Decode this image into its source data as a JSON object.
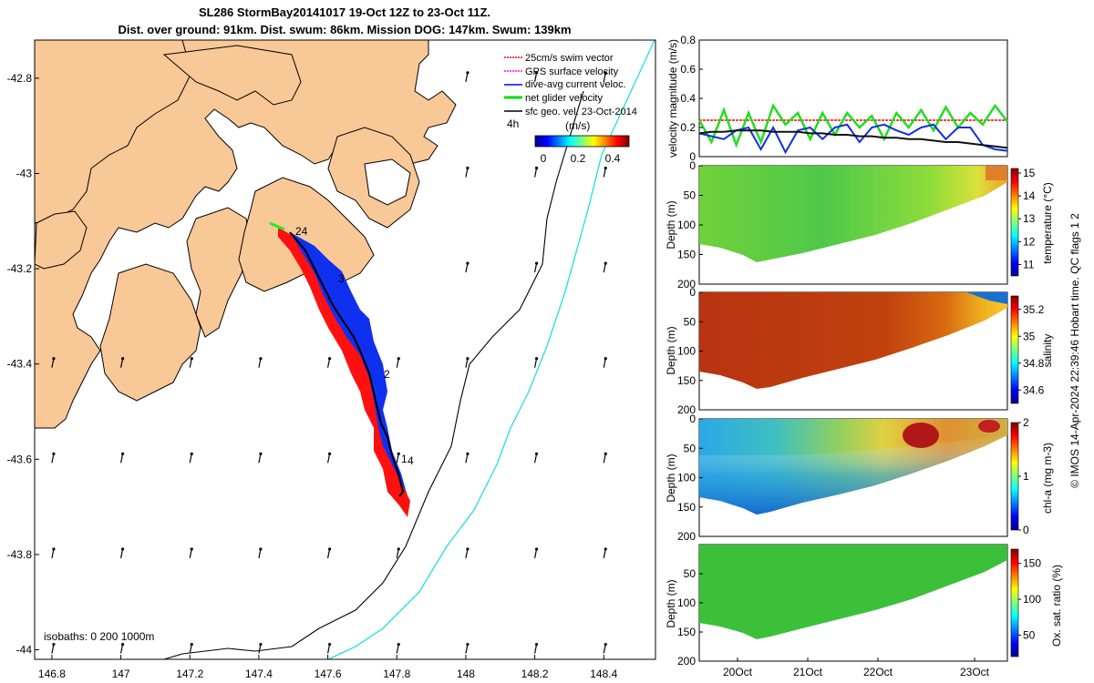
{
  "chart_data": [
    {
      "type": "map",
      "title_line1": "SL286 StormBay20141017 19-Oct 12Z to 23-Oct 11Z.",
      "title_line2": "Dist. over ground: 91km. Dist. swum: 86km. Mission DOG: 147km. Swum: 139km",
      "x_ticks": [
        "146.8",
        "147",
        "147.2",
        "147.4",
        "147.6",
        "147.8",
        "148",
        "148.2",
        "148.4"
      ],
      "y_ticks": [
        "-42.8",
        "-43",
        "-43.2",
        "-43.4",
        "-43.6",
        "-43.8",
        "-44"
      ],
      "xlim": [
        146.75,
        148.55
      ],
      "ylim": [
        -44.02,
        -42.72
      ],
      "legend": [
        {
          "label": "25cm/s swim vector",
          "color": "#ff0000"
        },
        {
          "label": "GPS surface velocity",
          "color": "#ff00ff"
        },
        {
          "label": "dive-avg current veloc.",
          "color": "#0000ff"
        },
        {
          "label": "net glider velocity",
          "color": "#00dd00"
        },
        {
          "label": "sfc geo. vel. 23-Oct-2014",
          "color": "#000000"
        }
      ],
      "time_label": "4h",
      "colorbar_label": "(m/s)",
      "colorbar_ticks": [
        "0",
        "0.2",
        "0.4"
      ],
      "track_labels": [
        "24",
        "3",
        "2",
        "1",
        "4"
      ],
      "isobaths_label": "isobaths: 0   200  1000m"
    },
    {
      "type": "line",
      "ylabel": "velocity magnitude (m/s)",
      "ylim": [
        0,
        0.8
      ],
      "y_ticks": [
        "0",
        "0.2",
        "0.4",
        "0.6",
        "0.8"
      ],
      "series": [
        {
          "name": "swim",
          "color": "#ff0000",
          "values": [
            0.25,
            0.25,
            0.25,
            0.25,
            0.25,
            0.25,
            0.25,
            0.25,
            0.25,
            0.25,
            0.25,
            0.25,
            0.25,
            0.25,
            0.25,
            0.25,
            0.25,
            0.25,
            0.25,
            0.25,
            0.25,
            0.25,
            0.25,
            0.25,
            0.25,
            0.25
          ]
        },
        {
          "name": "net glider",
          "color": "#22dd22",
          "values": [
            0.25,
            0.1,
            0.32,
            0.08,
            0.3,
            0.1,
            0.35,
            0.22,
            0.3,
            0.12,
            0.3,
            0.15,
            0.3,
            0.2,
            0.28,
            0.12,
            0.3,
            0.2,
            0.32,
            0.18,
            0.34,
            0.2,
            0.3,
            0.22,
            0.35,
            0.24
          ]
        },
        {
          "name": "current",
          "color": "#1030e0",
          "values": [
            0.16,
            0.14,
            0.12,
            0.18,
            0.2,
            0.05,
            0.2,
            0.03,
            0.18,
            0.2,
            0.12,
            0.2,
            0.22,
            0.1,
            0.2,
            0.22,
            0.18,
            0.15,
            0.2,
            0.22,
            0.12,
            0.2,
            0.2,
            0.08,
            0.05,
            0.04
          ]
        },
        {
          "name": "sfc geo",
          "color": "#111111",
          "values": [
            0.16,
            0.17,
            0.17,
            0.18,
            0.18,
            0.18,
            0.17,
            0.17,
            0.17,
            0.16,
            0.16,
            0.15,
            0.15,
            0.14,
            0.14,
            0.13,
            0.13,
            0.12,
            0.12,
            0.11,
            0.1,
            0.1,
            0.09,
            0.08,
            0.07,
            0.06
          ]
        }
      ]
    },
    {
      "type": "heatmap",
      "ylabel": "Depth (m)",
      "y_ticks": [
        "0",
        "50",
        "100",
        "150",
        "200"
      ],
      "colorbar_label": "temperature (°C)",
      "colorbar_ticks": [
        "11",
        "12",
        "13",
        "14",
        "15"
      ],
      "clim": [
        10.5,
        15.2
      ]
    },
    {
      "type": "heatmap",
      "ylabel": "Depth (m)",
      "y_ticks": [
        "0",
        "50",
        "100",
        "150",
        "200"
      ],
      "colorbar_label": "salinity",
      "colorbar_ticks": [
        "34.6",
        "34.8",
        "35",
        "35.2"
      ],
      "clim": [
        34.5,
        35.3
      ]
    },
    {
      "type": "heatmap",
      "ylabel": "Depth (m)",
      "y_ticks": [
        "0",
        "50",
        "100",
        "150",
        "200"
      ],
      "colorbar_label": "chl-a (mg m-3)",
      "colorbar_ticks": [
        "0",
        "1",
        "2"
      ],
      "clim": [
        0,
        2
      ]
    },
    {
      "type": "heatmap",
      "ylabel": "Depth (m)",
      "y_ticks": [
        "50",
        "100",
        "150",
        "200"
      ],
      "colorbar_label": "Ox. sat. ratio (%)",
      "colorbar_ticks": [
        "50",
        "100",
        "150"
      ],
      "clim": [
        20,
        170
      ],
      "x_ticks": [
        "20Oct",
        "21Oct",
        "22Oct",
        "23Oct"
      ]
    }
  ],
  "footer": "© IMOS 14-Apr-2024 22:39:46 Hobart time. QC flags 1  2"
}
